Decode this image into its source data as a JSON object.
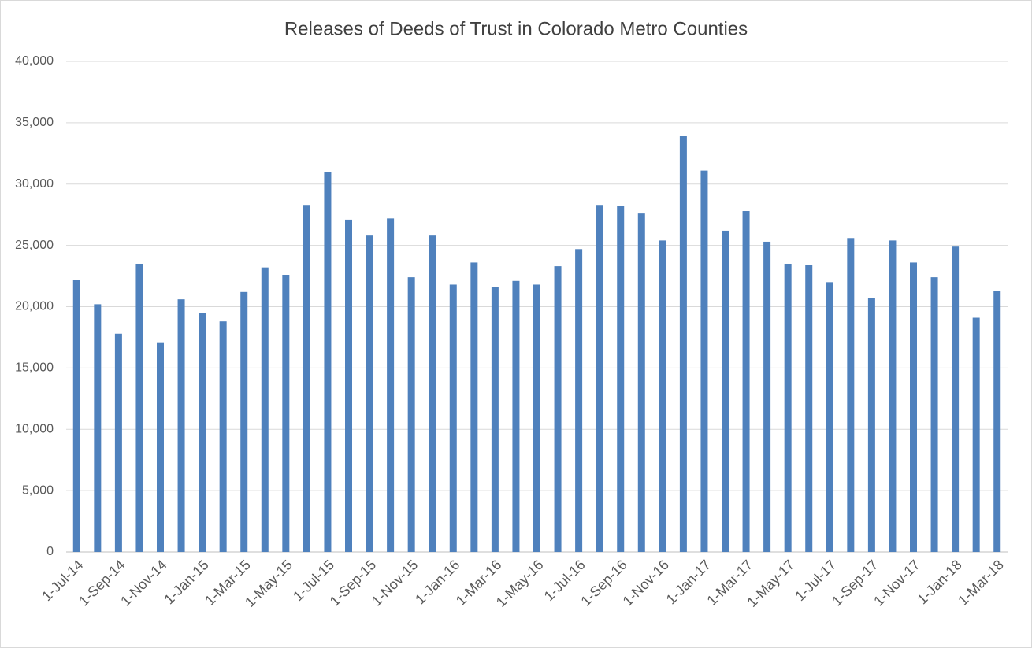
{
  "chart_data": {
    "type": "bar",
    "title": "Releases of Deeds of Trust in Colorado Metro Counties",
    "categories": [
      "1-Jul-14",
      null,
      "1-Sep-14",
      null,
      "1-Nov-14",
      null,
      "1-Jan-15",
      null,
      "1-Mar-15",
      null,
      "1-May-15",
      null,
      "1-Jul-15",
      null,
      "1-Sep-15",
      null,
      "1-Nov-15",
      null,
      "1-Jan-16",
      null,
      "1-Mar-16",
      null,
      "1-May-16",
      null,
      "1-Jul-16",
      null,
      "1-Sep-16",
      null,
      "1-Nov-16",
      null,
      "1-Jan-17",
      null,
      "1-Mar-17",
      null,
      "1-May-17",
      null,
      "1-Jul-17",
      null,
      "1-Sep-17",
      null,
      "1-Nov-17",
      null,
      "1-Jan-18",
      null,
      "1-Mar-18"
    ],
    "values": [
      22200,
      20200,
      17800,
      23500,
      17100,
      20600,
      19500,
      18800,
      21200,
      23200,
      22600,
      28300,
      31000,
      27100,
      25800,
      27200,
      22400,
      25800,
      21800,
      23600,
      21600,
      22100,
      21800,
      23300,
      24700,
      28300,
      28200,
      27600,
      25400,
      33900,
      31100,
      26200,
      27800,
      25300,
      23500,
      23400,
      22000,
      25600,
      20700,
      25400,
      23600,
      22400,
      24900,
      19100,
      21300
    ],
    "color": "#4f81bd",
    "ylim": [
      0,
      40000
    ],
    "yticks": [
      0,
      {
        "value": 5000,
        "label": "5,000"
      },
      {
        "value": 10000,
        "label": "10,000"
      },
      {
        "value": 15000,
        "label": "15,000"
      },
      {
        "value": 20000,
        "label": "20,000"
      },
      {
        "value": 25000,
        "label": "25,000"
      },
      {
        "value": 30000,
        "label": "30,000"
      },
      {
        "value": 35000,
        "label": "35,000"
      },
      {
        "value": 40000,
        "label": "40,000"
      }
    ],
    "grid": true
  }
}
